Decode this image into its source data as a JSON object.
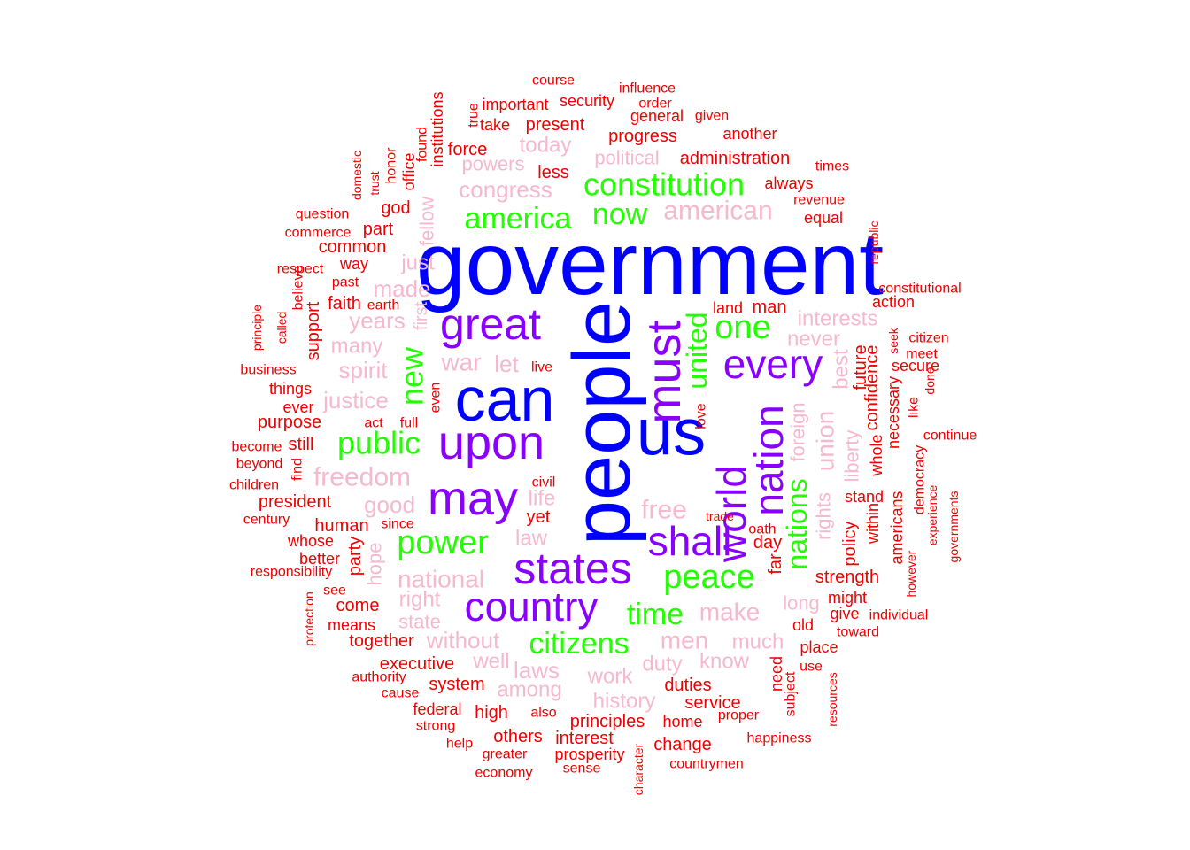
{
  "colors": {
    "blue": "#0000ff",
    "purple": "#8a00ff",
    "green": "#22ff00",
    "pink": "#f6b8cc",
    "red": "#ee0000"
  },
  "words": [
    {
      "text": "government",
      "color": "blue"
    },
    {
      "text": "people",
      "color": "blue"
    },
    {
      "text": "can",
      "color": "blue"
    },
    {
      "text": "us",
      "color": "blue"
    },
    {
      "text": "great",
      "color": "purple"
    },
    {
      "text": "upon",
      "color": "purple"
    },
    {
      "text": "may",
      "color": "purple"
    },
    {
      "text": "must",
      "color": "purple"
    },
    {
      "text": "states",
      "color": "purple"
    },
    {
      "text": "country",
      "color": "purple"
    },
    {
      "text": "shall",
      "color": "purple"
    },
    {
      "text": "every",
      "color": "purple"
    },
    {
      "text": "world",
      "color": "purple"
    },
    {
      "text": "nation",
      "color": "purple"
    },
    {
      "text": "constitution",
      "color": "green"
    },
    {
      "text": "america",
      "color": "green"
    },
    {
      "text": "now",
      "color": "green"
    },
    {
      "text": "one",
      "color": "green"
    },
    {
      "text": "united",
      "color": "green"
    },
    {
      "text": "new",
      "color": "green"
    },
    {
      "text": "public",
      "color": "green"
    },
    {
      "text": "power",
      "color": "green"
    },
    {
      "text": "peace",
      "color": "green"
    },
    {
      "text": "time",
      "color": "green"
    },
    {
      "text": "citizens",
      "color": "green"
    },
    {
      "text": "nations",
      "color": "green"
    },
    {
      "text": "american",
      "color": "pink"
    },
    {
      "text": "congress",
      "color": "pink"
    },
    {
      "text": "today",
      "color": "pink"
    },
    {
      "text": "powers",
      "color": "pink"
    },
    {
      "text": "political",
      "color": "pink"
    },
    {
      "text": "fellow",
      "color": "pink"
    },
    {
      "text": "just",
      "color": "pink"
    },
    {
      "text": "made",
      "color": "pink"
    },
    {
      "text": "first",
      "color": "pink"
    },
    {
      "text": "years",
      "color": "pink"
    },
    {
      "text": "many",
      "color": "pink"
    },
    {
      "text": "war",
      "color": "pink"
    },
    {
      "text": "let",
      "color": "pink"
    },
    {
      "text": "spirit",
      "color": "pink"
    },
    {
      "text": "justice",
      "color": "pink"
    },
    {
      "text": "freedom",
      "color": "pink"
    },
    {
      "text": "life",
      "color": "pink"
    },
    {
      "text": "good",
      "color": "pink"
    },
    {
      "text": "free",
      "color": "pink"
    },
    {
      "text": "law",
      "color": "pink"
    },
    {
      "text": "hope",
      "color": "pink"
    },
    {
      "text": "national",
      "color": "pink"
    },
    {
      "text": "right",
      "color": "pink"
    },
    {
      "text": "state",
      "color": "pink"
    },
    {
      "text": "without",
      "color": "pink"
    },
    {
      "text": "well",
      "color": "pink"
    },
    {
      "text": "laws",
      "color": "pink"
    },
    {
      "text": "among",
      "color": "pink"
    },
    {
      "text": "work",
      "color": "pink"
    },
    {
      "text": "history",
      "color": "pink"
    },
    {
      "text": "make",
      "color": "pink"
    },
    {
      "text": "men",
      "color": "pink"
    },
    {
      "text": "duty",
      "color": "pink"
    },
    {
      "text": "know",
      "color": "pink"
    },
    {
      "text": "much",
      "color": "pink"
    },
    {
      "text": "long",
      "color": "pink"
    },
    {
      "text": "interests",
      "color": "pink"
    },
    {
      "text": "never",
      "color": "pink"
    },
    {
      "text": "best",
      "color": "pink"
    },
    {
      "text": "foreign",
      "color": "pink"
    },
    {
      "text": "union",
      "color": "pink"
    },
    {
      "text": "rights",
      "color": "pink"
    },
    {
      "text": "liberty",
      "color": "pink"
    },
    {
      "text": "course",
      "color": "red"
    },
    {
      "text": "influence",
      "color": "red"
    },
    {
      "text": "important",
      "color": "red"
    },
    {
      "text": "security",
      "color": "red"
    },
    {
      "text": "order",
      "color": "red"
    },
    {
      "text": "true",
      "color": "red"
    },
    {
      "text": "take",
      "color": "red"
    },
    {
      "text": "present",
      "color": "red"
    },
    {
      "text": "general",
      "color": "red"
    },
    {
      "text": "given",
      "color": "red"
    },
    {
      "text": "institutions",
      "color": "red"
    },
    {
      "text": "progress",
      "color": "red"
    },
    {
      "text": "another",
      "color": "red"
    },
    {
      "text": "found",
      "color": "red"
    },
    {
      "text": "force",
      "color": "red"
    },
    {
      "text": "administration",
      "color": "red"
    },
    {
      "text": "domestic",
      "color": "red"
    },
    {
      "text": "honor",
      "color": "red"
    },
    {
      "text": "office",
      "color": "red"
    },
    {
      "text": "less",
      "color": "red"
    },
    {
      "text": "times",
      "color": "red"
    },
    {
      "text": "trust",
      "color": "red"
    },
    {
      "text": "always",
      "color": "red"
    },
    {
      "text": "revenue",
      "color": "red"
    },
    {
      "text": "god",
      "color": "red"
    },
    {
      "text": "question",
      "color": "red"
    },
    {
      "text": "equal",
      "color": "red"
    },
    {
      "text": "part",
      "color": "red"
    },
    {
      "text": "commerce",
      "color": "red"
    },
    {
      "text": "republic",
      "color": "red"
    },
    {
      "text": "common",
      "color": "red"
    },
    {
      "text": "way",
      "color": "red"
    },
    {
      "text": "respect",
      "color": "red"
    },
    {
      "text": "past",
      "color": "red"
    },
    {
      "text": "constitutional",
      "color": "red"
    },
    {
      "text": "believe",
      "color": "red"
    },
    {
      "text": "earth",
      "color": "red"
    },
    {
      "text": "principle",
      "color": "red"
    },
    {
      "text": "faith",
      "color": "red"
    },
    {
      "text": "land",
      "color": "red"
    },
    {
      "text": "man",
      "color": "red"
    },
    {
      "text": "action",
      "color": "red"
    },
    {
      "text": "called",
      "color": "red"
    },
    {
      "text": "support",
      "color": "red"
    },
    {
      "text": "citizen",
      "color": "red"
    },
    {
      "text": "seek",
      "color": "red"
    },
    {
      "text": "meet",
      "color": "red"
    },
    {
      "text": "business",
      "color": "red"
    },
    {
      "text": "live",
      "color": "red"
    },
    {
      "text": "secure",
      "color": "red"
    },
    {
      "text": "things",
      "color": "red"
    },
    {
      "text": "future",
      "color": "red"
    },
    {
      "text": "confidence",
      "color": "red"
    },
    {
      "text": "done",
      "color": "red"
    },
    {
      "text": "ever",
      "color": "red"
    },
    {
      "text": "even",
      "color": "red"
    },
    {
      "text": "purpose",
      "color": "red"
    },
    {
      "text": "act",
      "color": "red"
    },
    {
      "text": "full",
      "color": "red"
    },
    {
      "text": "love",
      "color": "red"
    },
    {
      "text": "like",
      "color": "red"
    },
    {
      "text": "necessary",
      "color": "red"
    },
    {
      "text": "continue",
      "color": "red"
    },
    {
      "text": "become",
      "color": "red"
    },
    {
      "text": "still",
      "color": "red"
    },
    {
      "text": "whole",
      "color": "red"
    },
    {
      "text": "beyond",
      "color": "red"
    },
    {
      "text": "find",
      "color": "red"
    },
    {
      "text": "civil",
      "color": "red"
    },
    {
      "text": "democracy",
      "color": "red"
    },
    {
      "text": "children",
      "color": "red"
    },
    {
      "text": "stand",
      "color": "red"
    },
    {
      "text": "president",
      "color": "red"
    },
    {
      "text": "yet",
      "color": "red"
    },
    {
      "text": "trade",
      "color": "red"
    },
    {
      "text": "within",
      "color": "red"
    },
    {
      "text": "americans",
      "color": "red"
    },
    {
      "text": "governments",
      "color": "red"
    },
    {
      "text": "century",
      "color": "red"
    },
    {
      "text": "human",
      "color": "red"
    },
    {
      "text": "since",
      "color": "red"
    },
    {
      "text": "oath",
      "color": "red"
    },
    {
      "text": "experience",
      "color": "red"
    },
    {
      "text": "whose",
      "color": "red"
    },
    {
      "text": "day",
      "color": "red"
    },
    {
      "text": "policy",
      "color": "red"
    },
    {
      "text": "better",
      "color": "red"
    },
    {
      "text": "party",
      "color": "red"
    },
    {
      "text": "responsibility",
      "color": "red"
    },
    {
      "text": "far",
      "color": "red"
    },
    {
      "text": "strength",
      "color": "red"
    },
    {
      "text": "however",
      "color": "red"
    },
    {
      "text": "see",
      "color": "red"
    },
    {
      "text": "might",
      "color": "red"
    },
    {
      "text": "come",
      "color": "red"
    },
    {
      "text": "give",
      "color": "red"
    },
    {
      "text": "individual",
      "color": "red"
    },
    {
      "text": "protection",
      "color": "red"
    },
    {
      "text": "means",
      "color": "red"
    },
    {
      "text": "old",
      "color": "red"
    },
    {
      "text": "toward",
      "color": "red"
    },
    {
      "text": "together",
      "color": "red"
    },
    {
      "text": "place",
      "color": "red"
    },
    {
      "text": "executive",
      "color": "red"
    },
    {
      "text": "need",
      "color": "red"
    },
    {
      "text": "use",
      "color": "red"
    },
    {
      "text": "authority",
      "color": "red"
    },
    {
      "text": "system",
      "color": "red"
    },
    {
      "text": "duties",
      "color": "red"
    },
    {
      "text": "subject",
      "color": "red"
    },
    {
      "text": "resources",
      "color": "red"
    },
    {
      "text": "cause",
      "color": "red"
    },
    {
      "text": "service",
      "color": "red"
    },
    {
      "text": "federal",
      "color": "red"
    },
    {
      "text": "high",
      "color": "red"
    },
    {
      "text": "also",
      "color": "red"
    },
    {
      "text": "principles",
      "color": "red"
    },
    {
      "text": "home",
      "color": "red"
    },
    {
      "text": "proper",
      "color": "red"
    },
    {
      "text": "strong",
      "color": "red"
    },
    {
      "text": "others",
      "color": "red"
    },
    {
      "text": "interest",
      "color": "red"
    },
    {
      "text": "happiness",
      "color": "red"
    },
    {
      "text": "help",
      "color": "red"
    },
    {
      "text": "change",
      "color": "red"
    },
    {
      "text": "greater",
      "color": "red"
    },
    {
      "text": "prosperity",
      "color": "red"
    },
    {
      "text": "character",
      "color": "red"
    },
    {
      "text": "countrymen",
      "color": "red"
    },
    {
      "text": "sense",
      "color": "red"
    },
    {
      "text": "economy",
      "color": "red"
    }
  ]
}
